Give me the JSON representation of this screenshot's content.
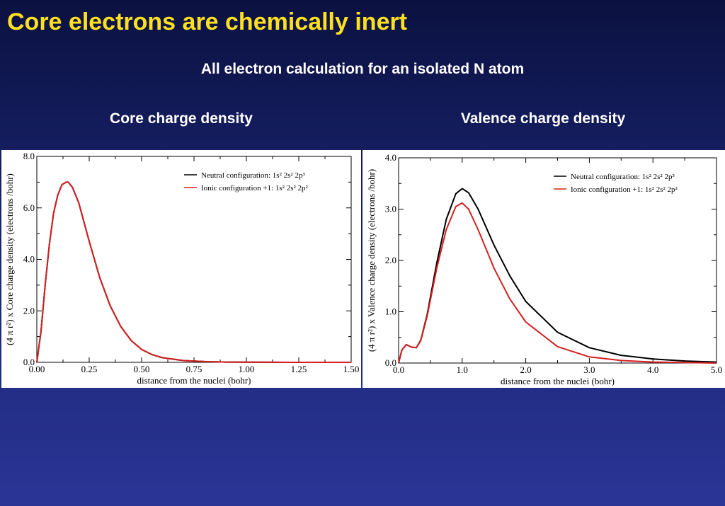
{
  "slide": {
    "title": "Core electrons are chemically inert",
    "subtitle": "All electron calculation for an isolated N atom",
    "left_heading": "Core charge density",
    "right_heading": "Valence charge density"
  },
  "colors": {
    "title": "#ffe020",
    "neutral": "#000000",
    "ionic": "#d42020"
  },
  "chart_data": [
    {
      "type": "line",
      "ylabel": "(4 π r²) x Core charge density (electrons /bohr)",
      "xlabel": "distance from the nuclei (bohr)",
      "xlim": [
        0,
        1.5
      ],
      "ylim": [
        0,
        8
      ],
      "xticks": [
        "0.00",
        "0.25",
        "0.50",
        "0.75",
        "1.00",
        "1.25",
        "1.50"
      ],
      "xtick_values": [
        0,
        0.25,
        0.5,
        0.75,
        1.0,
        1.25,
        1.5
      ],
      "yticks": [
        "0.0",
        "2.0",
        "4.0",
        "6.0",
        "8.0"
      ],
      "ytick_values": [
        0,
        2,
        4,
        6,
        8
      ],
      "legend_position": "top-right",
      "series": [
        {
          "name": "Neutral configuration: 1s² 2s² 2p³",
          "color": "#000000",
          "x": [
            0,
            0.02,
            0.04,
            0.06,
            0.08,
            0.1,
            0.12,
            0.14,
            0.15,
            0.17,
            0.2,
            0.22,
            0.25,
            0.3,
            0.35,
            0.4,
            0.45,
            0.5,
            0.55,
            0.6,
            0.7,
            0.8,
            0.9,
            1.0,
            1.2,
            1.5
          ],
          "y": [
            0,
            1.2,
            3.0,
            4.6,
            5.8,
            6.5,
            6.9,
            7.0,
            7.0,
            6.8,
            6.2,
            5.6,
            4.7,
            3.3,
            2.2,
            1.4,
            0.85,
            0.5,
            0.3,
            0.18,
            0.07,
            0.03,
            0.01,
            0.005,
            0.0,
            0.0
          ]
        },
        {
          "name": "Ionic configuration +1: 1s² 2s² 2p²",
          "color": "#d42020",
          "x": [
            0,
            0.02,
            0.04,
            0.06,
            0.08,
            0.1,
            0.12,
            0.14,
            0.15,
            0.17,
            0.2,
            0.22,
            0.25,
            0.3,
            0.35,
            0.4,
            0.45,
            0.5,
            0.55,
            0.6,
            0.7,
            0.8,
            0.9,
            1.0,
            1.2,
            1.5
          ],
          "y": [
            0,
            1.2,
            3.0,
            4.6,
            5.8,
            6.5,
            6.9,
            7.0,
            7.0,
            6.8,
            6.2,
            5.6,
            4.7,
            3.3,
            2.2,
            1.4,
            0.85,
            0.5,
            0.3,
            0.18,
            0.07,
            0.03,
            0.01,
            0.005,
            0.0,
            0.0
          ]
        }
      ]
    },
    {
      "type": "line",
      "ylabel": "(4 π r²) x Valence charge density (electrons /bohr)",
      "xlabel": "distance from the nuclei (bohr)",
      "xlim": [
        0,
        5
      ],
      "ylim": [
        0,
        4
      ],
      "xticks": [
        "0.0",
        "1.0",
        "2.0",
        "3.0",
        "4.0",
        "5.0"
      ],
      "xtick_values": [
        0,
        1,
        2,
        3,
        4,
        5
      ],
      "yticks": [
        "0.0",
        "1.0",
        "2.0",
        "3.0",
        "4.0"
      ],
      "ytick_values": [
        0,
        1,
        2,
        3,
        4
      ],
      "legend_position": "top-right",
      "series": [
        {
          "name": "Neutral configuration: 1s² 2s² 2p³",
          "color": "#000000",
          "x": [
            0,
            0.05,
            0.12,
            0.2,
            0.28,
            0.35,
            0.45,
            0.6,
            0.75,
            0.9,
            1.0,
            1.1,
            1.25,
            1.5,
            1.75,
            2.0,
            2.5,
            3.0,
            3.5,
            4.0,
            4.5,
            5.0
          ],
          "y": [
            0,
            0.25,
            0.36,
            0.31,
            0.3,
            0.45,
            0.95,
            1.95,
            2.8,
            3.3,
            3.4,
            3.32,
            3.0,
            2.3,
            1.7,
            1.2,
            0.6,
            0.3,
            0.15,
            0.08,
            0.04,
            0.02
          ]
        },
        {
          "name": "Ionic configuration +1: 1s² 2s² 2p²",
          "color": "#d42020",
          "x": [
            0,
            0.05,
            0.12,
            0.2,
            0.28,
            0.35,
            0.45,
            0.6,
            0.75,
            0.9,
            1.0,
            1.1,
            1.25,
            1.5,
            1.75,
            2.0,
            2.5,
            3.0,
            3.5,
            4.0,
            4.5,
            5.0
          ],
          "y": [
            0,
            0.25,
            0.36,
            0.31,
            0.3,
            0.44,
            0.92,
            1.85,
            2.6,
            3.05,
            3.12,
            3.0,
            2.6,
            1.85,
            1.25,
            0.8,
            0.32,
            0.12,
            0.05,
            0.02,
            0.01,
            0.0
          ]
        }
      ]
    }
  ]
}
